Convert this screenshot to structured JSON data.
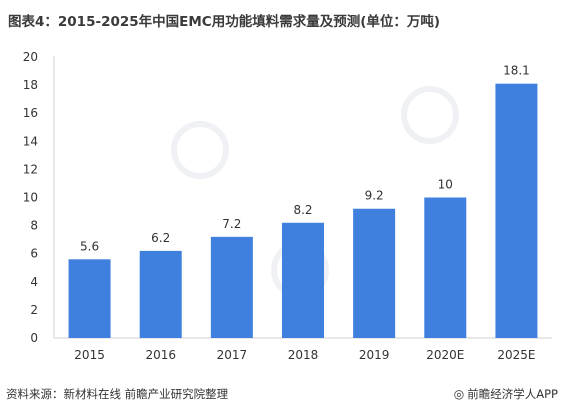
{
  "title": "图表4：2015-2025年中国EMC用功能填料需求量及预测(单位：万吨)",
  "footer": {
    "source": "资料来源：新材料在线 前瞻产业研究院整理",
    "brand": "前瞻经济学人APP",
    "brand_icon": "target-icon"
  },
  "colors": {
    "bar": "#3f7fde",
    "axis": "#d0d0d0",
    "text": "#333333"
  },
  "chart_data": {
    "type": "bar",
    "title": "图表4：2015-2025年中国EMC用功能填料需求量及预测(单位：万吨)",
    "xlabel": "",
    "ylabel": "",
    "categories": [
      "2015",
      "2016",
      "2017",
      "2018",
      "2019",
      "2020E",
      "2025E"
    ],
    "values": [
      5.6,
      6.2,
      7.2,
      8.2,
      9.2,
      10,
      18.1
    ],
    "value_labels": [
      "5.6",
      "6.2",
      "7.2",
      "8.2",
      "9.2",
      "10",
      "18.1"
    ],
    "ylim": [
      0,
      20
    ],
    "yticks": [
      0,
      2,
      4,
      6,
      8,
      10,
      12,
      14,
      16,
      18,
      20
    ],
    "grid": false,
    "legend": "none"
  }
}
